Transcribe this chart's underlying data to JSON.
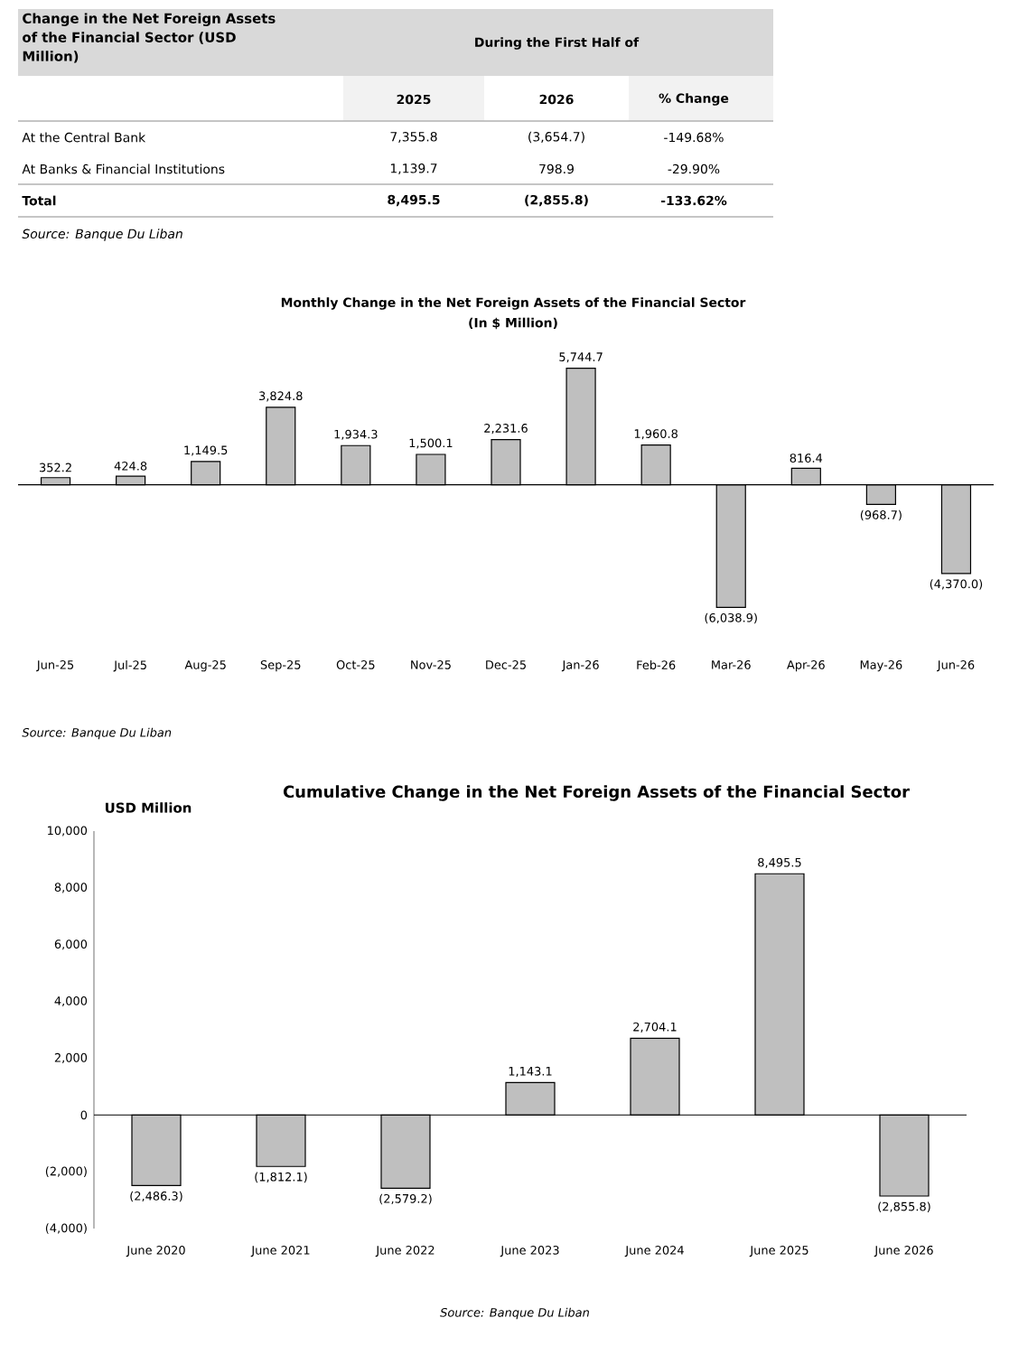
{
  "chart_data": [
    {
      "type": "other",
      "title": "Change in the Net Foreign Assets of the Financial Sector (USD Million)",
      "subtitle": "During the First Half of",
      "annotations": [
        "2025",
        "2026",
        "% Change",
        "At the Central Bank",
        "7,355.8",
        "(3,654.7)",
        "-149.68%",
        "At Banks & Financial Institutions",
        "1,139.7",
        "798.9",
        "-29.90%",
        "Total",
        "8,495.5",
        "(2,855.8)",
        "-133.62%",
        "Source: Banque Du Liban"
      ]
    },
    {
      "type": "bar",
      "title": "Monthly Change in the Net Foreign Assets of the Financial Sector",
      "subtitle": "(In $ Million)",
      "categories": [
        "Jun-25",
        "Jul-25",
        "Aug-25",
        "Sep-25",
        "Oct-25",
        "Nov-25",
        "Dec-25",
        "Jan-26",
        "Feb-26",
        "Mar-26",
        "Apr-26",
        "May-26",
        "Jun-26"
      ],
      "values": [
        352.2,
        424.8,
        1149.5,
        3824.8,
        1934.3,
        1500.1,
        2231.6,
        5744.7,
        1960.8,
        -6038.9,
        816.4,
        -968.7,
        -4370.0
      ],
      "value_labels": [
        "352.2",
        "424.8",
        "1,149.5",
        "3,824.8",
        "1,934.3",
        "1,500.1",
        "2,231.6",
        "5,744.7",
        "1,960.8",
        "(6,038.9)",
        "816.4",
        "(968.7)",
        "(4,370.0)"
      ],
      "color": "#bfbfbf",
      "annotations": [
        "Source: Banque Du Liban"
      ]
    },
    {
      "type": "bar",
      "title": "Cumulative Change in the Net Foreign Assets of the Financial Sector",
      "ylabel": "USD Million",
      "categories": [
        "June 2020",
        "June 2021",
        "June 2022",
        "June 2023",
        "June 2024",
        "June 2025",
        "June 2026"
      ],
      "values": [
        -2486.3,
        -1812.1,
        -2579.2,
        1143.1,
        2704.1,
        8495.5,
        -2855.8
      ],
      "value_labels": [
        "(2,486.3)",
        "(1,812.1)",
        "(2,579.2)",
        "1,143.1",
        "2,704.1",
        "8,495.5",
        "(2,855.8)"
      ],
      "color": "#bfbfbf",
      "ylim": [
        -4000,
        10000
      ],
      "yticks": [
        {
          "value": -4000,
          "label": "(4,000)"
        },
        {
          "value": -2000,
          "label": "(2,000)"
        },
        0,
        {
          "value": 2000,
          "label": "2,000"
        },
        {
          "value": 4000,
          "label": "4,000"
        },
        {
          "value": 6000,
          "label": "6,000"
        },
        {
          "value": 8000,
          "label": "8,000"
        },
        {
          "value": 10000,
          "label": "10,000"
        }
      ],
      "annotations": [
        "Source: Banque Du Liban"
      ]
    }
  ]
}
